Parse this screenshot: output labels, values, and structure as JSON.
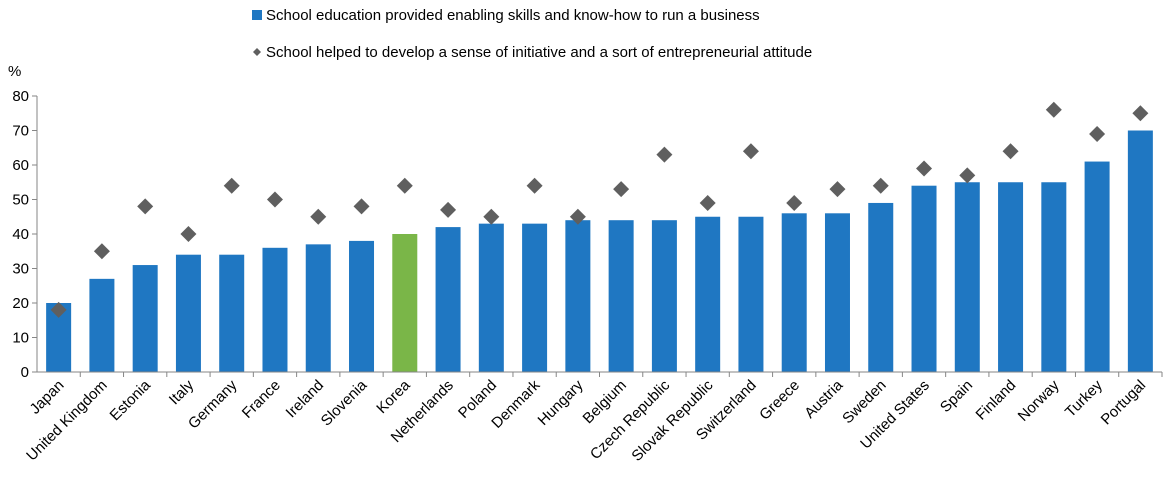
{
  "chart_data": {
    "type": "bar",
    "ylabel": "%",
    "ylim": [
      0,
      80
    ],
    "yticks": [
      0,
      10,
      20,
      30,
      40,
      50,
      60,
      70,
      80
    ],
    "grid": false,
    "legend_position": "top-center",
    "categories": [
      "Japan",
      "United Kingdom",
      "Estonia",
      "Italy",
      "Germany",
      "France",
      "Ireland",
      "Slovenia",
      "Korea",
      "Netherlands",
      "Poland",
      "Denmark",
      "Hungary",
      "Belgium",
      "Czech Republic",
      "Slovak Republic",
      "Switzerland",
      "Greece",
      "Austria",
      "Sweden",
      "United States",
      "Spain",
      "Finland",
      "Norway",
      "Turkey",
      "Portugal"
    ],
    "highlight_category": "Korea",
    "series": [
      {
        "name": "School education provided enabling skills and know-how to run a business",
        "kind": "bar",
        "color": "#1f77c2",
        "highlight_color": "#7ab648",
        "values": [
          20,
          27,
          31,
          34,
          34,
          36,
          37,
          38,
          40,
          42,
          43,
          43,
          44,
          44,
          44,
          45,
          45,
          46,
          46,
          49,
          54,
          55,
          55,
          55,
          61,
          70
        ]
      },
      {
        "name": "School helped to develop a sense of initiative and a sort of entrepreneurial attitude",
        "kind": "diamond",
        "color": "#5f5f5f",
        "values": [
          18,
          35,
          48,
          40,
          54,
          50,
          45,
          48,
          54,
          47,
          45,
          54,
          45,
          53,
          63,
          49,
          64,
          49,
          53,
          54,
          59,
          57,
          64,
          76,
          69,
          75
        ]
      }
    ]
  }
}
